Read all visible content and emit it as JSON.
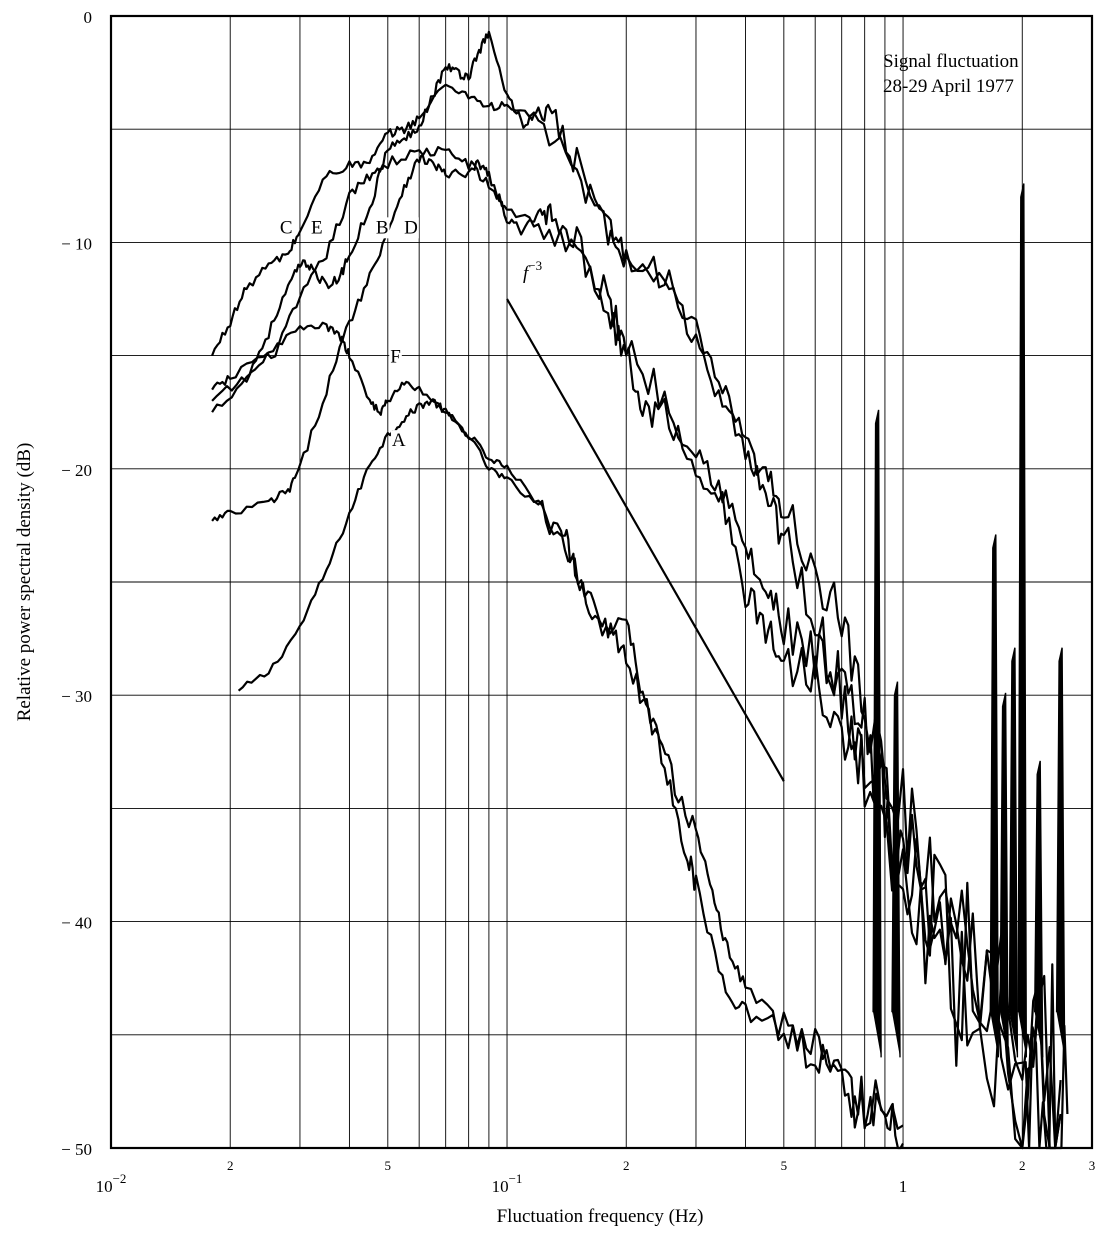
{
  "chart_data": {
    "type": "line",
    "title": "",
    "annotation_lines": [
      "Signal fluctuation",
      "28-29 April 1977"
    ],
    "xlabel": "Fluctuation frequency (Hz)",
    "ylabel": "Relative power spectral density (dB)",
    "x_scale": "log",
    "xlim": [
      0.01,
      3
    ],
    "ylim": [
      -50,
      0
    ],
    "grid": true,
    "x_major_ticks": [
      {
        "value": 0.01,
        "base": "10",
        "exp": "−2"
      },
      {
        "value": 0.1,
        "base": "10",
        "exp": "−1"
      },
      {
        "value": 1,
        "base": "1",
        "exp": ""
      }
    ],
    "x_minor_ticks": [
      {
        "value": 0.02,
        "label": "2"
      },
      {
        "value": 0.05,
        "label": "5"
      },
      {
        "value": 0.2,
        "label": "2"
      },
      {
        "value": 0.5,
        "label": "5"
      },
      {
        "value": 2,
        "label": "2"
      },
      {
        "value": 3,
        "label": "3"
      }
    ],
    "y_ticks": [
      {
        "value": 0,
        "label": "0"
      },
      {
        "value": -10,
        "label": "− 10"
      },
      {
        "value": -20,
        "label": "− 20"
      },
      {
        "value": -30,
        "label": "− 30"
      },
      {
        "value": -40,
        "label": "− 40"
      },
      {
        "value": -50,
        "label": "− 50"
      }
    ],
    "reference_line": {
      "label_base": "f",
      "label_exp": "−3",
      "points": [
        [
          0.1,
          -12.5
        ],
        [
          0.5,
          -33.8
        ]
      ]
    },
    "series": [
      {
        "name": "A",
        "label_at": [
          0.0533,
          -19.0
        ],
        "noise": 0.35,
        "points": [
          [
            0.021,
            -29.8
          ],
          [
            0.025,
            -29.0
          ],
          [
            0.03,
            -27.0
          ],
          [
            0.035,
            -24.5
          ],
          [
            0.04,
            -22.0
          ],
          [
            0.045,
            -19.8
          ],
          [
            0.05,
            -18.5
          ],
          [
            0.055,
            -17.8
          ],
          [
            0.06,
            -17.2
          ],
          [
            0.065,
            -17.0
          ],
          [
            0.07,
            -17.5
          ],
          [
            0.08,
            -18.5
          ],
          [
            0.09,
            -20.0
          ],
          [
            0.1,
            -20.5
          ],
          [
            0.12,
            -21.5
          ],
          [
            0.14,
            -23.0
          ],
          [
            0.15,
            -24.5
          ],
          [
            0.17,
            -27.0
          ],
          [
            0.2,
            -26.5
          ],
          [
            0.22,
            -30.0
          ],
          [
            0.25,
            -33.0
          ],
          [
            0.28,
            -36.5
          ],
          [
            0.3,
            -38.5
          ],
          [
            0.35,
            -42.5
          ],
          [
            0.4,
            -44.0
          ],
          [
            0.5,
            -44.5
          ],
          [
            0.6,
            -45.5
          ],
          [
            0.7,
            -47.5
          ],
          [
            0.8,
            -48.5
          ],
          [
            0.9,
            -49.3
          ],
          [
            1.0,
            -49.8
          ]
        ]
      },
      {
        "name": "B",
        "label_at": [
          0.0484,
          -9.6
        ],
        "noise": 0.5,
        "points": [
          [
            0.018,
            -17.0
          ],
          [
            0.022,
            -16.0
          ],
          [
            0.026,
            -14.8
          ],
          [
            0.03,
            -12.5
          ],
          [
            0.035,
            -10.5
          ],
          [
            0.04,
            -8.0
          ],
          [
            0.045,
            -7.0
          ],
          [
            0.05,
            -6.5
          ],
          [
            0.06,
            -6.0
          ],
          [
            0.07,
            -6.0
          ],
          [
            0.08,
            -6.5
          ],
          [
            0.09,
            -7.5
          ],
          [
            0.1,
            -8.5
          ],
          [
            0.12,
            -9.2
          ],
          [
            0.15,
            -10.5
          ],
          [
            0.18,
            -12.5
          ],
          [
            0.2,
            -14.5
          ],
          [
            0.25,
            -17.0
          ],
          [
            0.3,
            -19.0
          ],
          [
            0.35,
            -21.0
          ],
          [
            0.4,
            -23.5
          ],
          [
            0.45,
            -25.5
          ],
          [
            0.5,
            -27.0
          ],
          [
            0.6,
            -28.5
          ],
          [
            0.7,
            -30.0
          ],
          [
            0.8,
            -32.0
          ],
          [
            0.9,
            -35.0
          ],
          [
            1.0,
            -37.0
          ],
          [
            1.2,
            -39.5
          ],
          [
            1.5,
            -42.5
          ],
          [
            2.0,
            -45.5
          ],
          [
            2.3,
            -47.5
          ],
          [
            2.6,
            -48.5
          ]
        ]
      },
      {
        "name": "C",
        "label_at": [
          0.0277,
          -9.6
        ],
        "noise": 0.4,
        "points": [
          [
            0.018,
            -15.0
          ],
          [
            0.02,
            -13.5
          ],
          [
            0.022,
            -12.0
          ],
          [
            0.025,
            -11.0
          ],
          [
            0.028,
            -10.5
          ],
          [
            0.03,
            -9.5
          ],
          [
            0.035,
            -7.0
          ],
          [
            0.04,
            -6.6
          ],
          [
            0.045,
            -6.5
          ],
          [
            0.05,
            -5.2
          ],
          [
            0.055,
            -5.0
          ],
          [
            0.06,
            -4.5
          ],
          [
            0.07,
            -3.0
          ],
          [
            0.08,
            -3.5
          ],
          [
            0.09,
            -4.0
          ],
          [
            0.1,
            -4.0
          ],
          [
            0.12,
            -4.5
          ],
          [
            0.15,
            -7.0
          ],
          [
            0.18,
            -9.5
          ],
          [
            0.2,
            -10.5
          ],
          [
            0.25,
            -12.0
          ],
          [
            0.3,
            -14.0
          ],
          [
            0.35,
            -16.5
          ],
          [
            0.4,
            -19.0
          ],
          [
            0.45,
            -20.5
          ],
          [
            0.5,
            -21.5
          ],
          [
            0.6,
            -24.5
          ],
          [
            0.7,
            -27.0
          ],
          [
            0.8,
            -31.0
          ],
          [
            1.0,
            -35.0
          ],
          [
            1.2,
            -38.0
          ],
          [
            1.5,
            -41.0
          ],
          [
            2.0,
            -44.5
          ],
          [
            2.5,
            -47.0
          ]
        ]
      },
      {
        "name": "D",
        "label_at": [
          0.0572,
          -9.6
        ],
        "noise": 0.45,
        "points": [
          [
            0.018,
            -22.3
          ],
          [
            0.02,
            -22.0
          ],
          [
            0.025,
            -21.5
          ],
          [
            0.028,
            -21.0
          ],
          [
            0.03,
            -20.0
          ],
          [
            0.035,
            -16.5
          ],
          [
            0.04,
            -13.5
          ],
          [
            0.045,
            -11.5
          ],
          [
            0.05,
            -9.5
          ],
          [
            0.055,
            -7.5
          ],
          [
            0.06,
            -6.3
          ],
          [
            0.065,
            -6.5
          ],
          [
            0.07,
            -7.0
          ],
          [
            0.08,
            -7.0
          ],
          [
            0.085,
            -6.5
          ],
          [
            0.09,
            -7.0
          ],
          [
            0.1,
            -9.0
          ],
          [
            0.11,
            -9.5
          ],
          [
            0.12,
            -8.8
          ],
          [
            0.13,
            -8.5
          ],
          [
            0.15,
            -10.0
          ],
          [
            0.18,
            -13.0
          ],
          [
            0.2,
            -15.0
          ],
          [
            0.22,
            -17.5
          ],
          [
            0.25,
            -17.5
          ],
          [
            0.3,
            -20.0
          ],
          [
            0.35,
            -21.5
          ],
          [
            0.4,
            -25.5
          ],
          [
            0.45,
            -27.0
          ],
          [
            0.5,
            -28.5
          ],
          [
            0.6,
            -29.0
          ],
          [
            0.7,
            -31.0
          ],
          [
            0.8,
            -33.0
          ],
          [
            1.0,
            -37.0
          ],
          [
            1.2,
            -40.0
          ],
          [
            1.5,
            -43.0
          ],
          [
            2.0,
            -46.0
          ],
          [
            2.5,
            -48.5
          ]
        ]
      },
      {
        "name": "E",
        "label_at": [
          0.0331,
          -9.6
        ],
        "noise": 0.45,
        "points": [
          [
            0.018,
            -17.5
          ],
          [
            0.022,
            -16.0
          ],
          [
            0.025,
            -14.0
          ],
          [
            0.028,
            -12.0
          ],
          [
            0.03,
            -11.0
          ],
          [
            0.032,
            -11.0
          ],
          [
            0.035,
            -12.0
          ],
          [
            0.038,
            -11.5
          ],
          [
            0.04,
            -10.5
          ],
          [
            0.045,
            -8.5
          ],
          [
            0.05,
            -5.8
          ],
          [
            0.055,
            -5.5
          ],
          [
            0.06,
            -4.8
          ],
          [
            0.065,
            -3.5
          ],
          [
            0.07,
            -2.2
          ],
          [
            0.075,
            -2.5
          ],
          [
            0.08,
            -2.7
          ],
          [
            0.085,
            -1.5
          ],
          [
            0.09,
            -0.8
          ],
          [
            0.1,
            -3.5
          ],
          [
            0.11,
            -4.8
          ],
          [
            0.12,
            -4.2
          ],
          [
            0.13,
            -4.6
          ],
          [
            0.15,
            -6.5
          ],
          [
            0.18,
            -9.5
          ],
          [
            0.2,
            -10.5
          ],
          [
            0.25,
            -11.5
          ],
          [
            0.3,
            -14.5
          ],
          [
            0.35,
            -17.5
          ],
          [
            0.4,
            -19.0
          ],
          [
            0.45,
            -21.0
          ],
          [
            0.5,
            -23.0
          ],
          [
            0.6,
            -26.5
          ],
          [
            0.7,
            -30.0
          ],
          [
            0.8,
            -33.5
          ],
          [
            1.0,
            -38.0
          ],
          [
            1.2,
            -41.5
          ],
          [
            1.5,
            -44.5
          ],
          [
            2.0,
            -47.0
          ],
          [
            2.5,
            -48.5
          ]
        ]
      },
      {
        "name": "F",
        "label_at": [
          0.0523,
          -15.3
        ],
        "noise": 0.35,
        "points": [
          [
            0.018,
            -16.5
          ],
          [
            0.02,
            -16.0
          ],
          [
            0.025,
            -14.8
          ],
          [
            0.03,
            -13.8
          ],
          [
            0.035,
            -13.7
          ],
          [
            0.038,
            -14.2
          ],
          [
            0.04,
            -15.0
          ],
          [
            0.045,
            -17.0
          ],
          [
            0.048,
            -17.5
          ],
          [
            0.05,
            -17.0
          ],
          [
            0.055,
            -16.2
          ],
          [
            0.06,
            -16.5
          ],
          [
            0.07,
            -17.5
          ],
          [
            0.08,
            -18.5
          ],
          [
            0.09,
            -19.5
          ],
          [
            0.1,
            -20.0
          ],
          [
            0.12,
            -21.5
          ],
          [
            0.14,
            -23.5
          ],
          [
            0.16,
            -25.5
          ],
          [
            0.18,
            -27.0
          ],
          [
            0.2,
            -28.5
          ],
          [
            0.23,
            -31.0
          ],
          [
            0.26,
            -33.5
          ],
          [
            0.3,
            -36.0
          ],
          [
            0.33,
            -39.0
          ],
          [
            0.36,
            -41.0
          ],
          [
            0.4,
            -43.0
          ],
          [
            0.5,
            -45.0
          ],
          [
            0.6,
            -46.0
          ],
          [
            0.7,
            -47.0
          ],
          [
            0.8,
            -48.0
          ],
          [
            1.0,
            -49.0
          ]
        ]
      }
    ],
    "spikes": [
      {
        "x": 0.86,
        "top": -18.0
      },
      {
        "x": 0.96,
        "top": -30.0
      },
      {
        "x": 1.7,
        "top": -23.5
      },
      {
        "x": 1.8,
        "top": -30.5
      },
      {
        "x": 1.9,
        "top": -28.5
      },
      {
        "x": 2.0,
        "top": -8.0
      },
      {
        "x": 2.2,
        "top": -33.5
      },
      {
        "x": 2.5,
        "top": -28.5
      }
    ]
  }
}
